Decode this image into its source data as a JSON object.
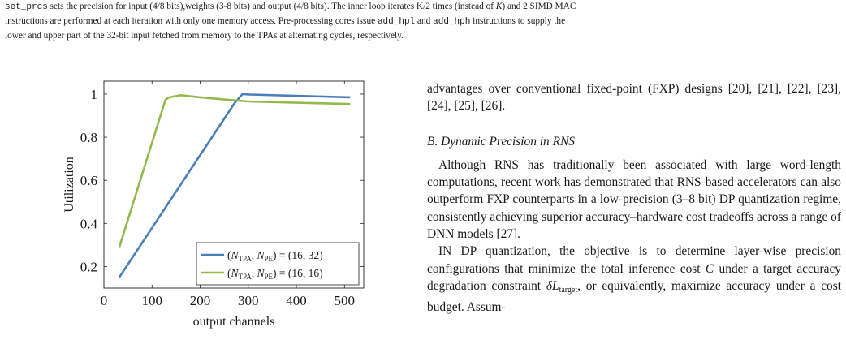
{
  "caption": {
    "line1": {
      "code": "set_prcs",
      "text": " sets the precision for input (4/8 bits),weights (3-8 bits) and output (4/8 bits). The inner loop iterates K/2 times (instead of ",
      "var": "K",
      "tail": ") and 2 SIMD MAC"
    },
    "line2": {
      "a": "instructions are performed at each iteration with only one memory access. Pre-processing cores issue ",
      "code1": "add_hpl",
      "b": " and ",
      "code2": "add_hph",
      "c": " instructions to supply the"
    },
    "line3": "lower and upper part of the 32-bit input fetched from memory to the TPAs at alternating cycles, respectively."
  },
  "chart_data": {
    "type": "line",
    "xlabel": "output channels",
    "ylabel": "Utilization",
    "xlim": [
      0,
      540
    ],
    "ylim": [
      0.1,
      1.06
    ],
    "xticks": [
      0,
      100,
      200,
      300,
      400,
      500
    ],
    "yticks": [
      0.2,
      0.4,
      0.6,
      0.8,
      1
    ],
    "xtick_labels": [
      "0",
      "100",
      "200",
      "300",
      "400",
      "500"
    ],
    "ytick_labels": [
      "0.2",
      "0.4",
      "0.6",
      "0.8",
      "1"
    ],
    "grid": false,
    "legend_position": "bottom-right",
    "series": [
      {
        "name": "(N_TPA, N_PE) = (16, 32)",
        "label_parts": [
          "(N",
          "TPA",
          ", N",
          "PE",
          ") = (16, 32)"
        ],
        "color": "#4a7ebb",
        "x": [
          32,
          272,
          288,
          304,
          512
        ],
        "y": [
          0.15,
          0.96,
          1.0,
          0.998,
          0.985
        ]
      },
      {
        "name": "(N_TPA, N_PE) = (16, 16)",
        "label_parts": [
          "(N",
          "TPA",
          ", N",
          "PE",
          ") = (16, 16)"
        ],
        "color": "#93b94d",
        "x": [
          32,
          128,
          136,
          160,
          200,
          250,
          300,
          400,
          512
        ],
        "y": [
          0.29,
          0.975,
          0.985,
          0.995,
          0.985,
          0.975,
          0.966,
          0.96,
          0.954
        ]
      }
    ]
  },
  "column": {
    "p1": "advantages over conventional fixed-point (FXP) designs [20], [21], [22], [23], [24], [25], [26].",
    "section": "B. Dynamic Precision in RNS",
    "p2": "Although RNS has traditionally been associated with large word-length computations, recent work has demonstrated that RNS-based accelerators can also outperform FXP counterparts in a low-precision (3–8 bit) DP quantization regime, consistently achieving superior accuracy–hardware cost tradeoffs across a range of DNN models [27].",
    "p3a": "IN DP quantization, the objective is to determine layer-wise precision configurations that minimize the total inference cost ",
    "p3C": "C",
    "p3b": " under a target accuracy degradation constraint ",
    "p3delta": "δL",
    "p3sub": "target",
    "p3c": ", or equivalently, maximize accuracy under a cost budget. Assum-"
  }
}
